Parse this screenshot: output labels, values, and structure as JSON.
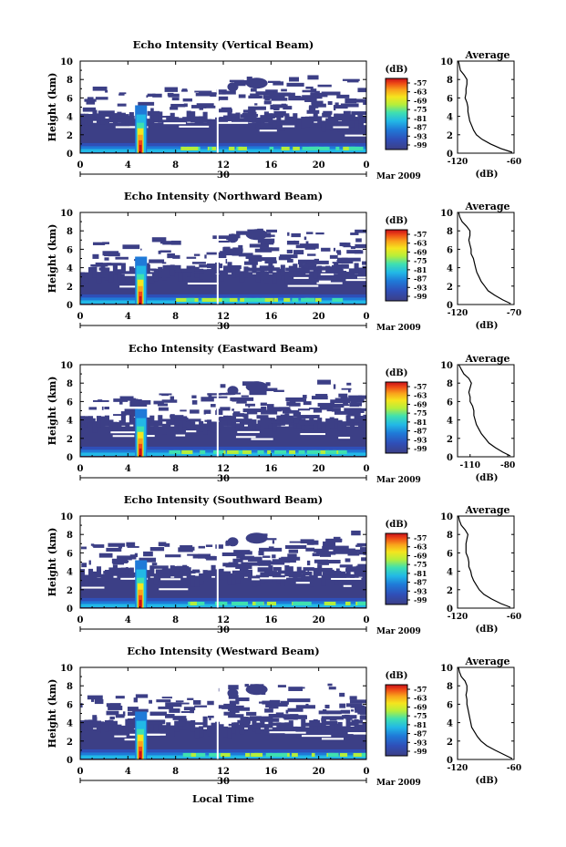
{
  "figure": {
    "xaxis_common_label": "Local Time",
    "colorbar_unit": "(dB)",
    "colorbar_ticks": [
      "-57",
      "-63",
      "-69",
      "-75",
      "-81",
      "-87",
      "-93",
      "-99"
    ],
    "colors": {
      "background_signal": "#3c3f86",
      "colormap": [
        "#3c3f86",
        "#2f4fb8",
        "#1f7ad8",
        "#22b8e6",
        "#3fe0b0",
        "#b4ee3c",
        "#f5e51e",
        "#f9a21b",
        "#ee4a16",
        "#c8101a"
      ]
    }
  },
  "chart_data": [
    {
      "type": "heatmap",
      "title": "Echo Intensity (Vertical Beam)",
      "ylabel": "Height (km)",
      "ylim": [
        0,
        10
      ],
      "yticks": [
        "0",
        "2",
        "4",
        "6",
        "8",
        "10"
      ],
      "xlim": [
        0,
        24
      ],
      "xticks": [
        "0",
        "4",
        "8",
        "12",
        "16",
        "20",
        "0"
      ],
      "date_day": "30",
      "date_label": "Mar 2009",
      "profile": {
        "title": "Average",
        "xlabel": "(dB)",
        "xlim": [
          -120,
          -60
        ],
        "xticks": [
          "-120",
          "-60"
        ],
        "points": [
          [
            -119,
            10
          ],
          [
            -118,
            9.5
          ],
          [
            -117,
            9.0
          ],
          [
            -113,
            8.5
          ],
          [
            -110,
            8.0
          ],
          [
            -110,
            7.5
          ],
          [
            -111,
            7.0
          ],
          [
            -111,
            6.5
          ],
          [
            -112,
            6.0
          ],
          [
            -110,
            5.5
          ],
          [
            -109,
            5.0
          ],
          [
            -109,
            4.5
          ],
          [
            -108,
            4.0
          ],
          [
            -107,
            3.5
          ],
          [
            -105,
            3.0
          ],
          [
            -103,
            2.5
          ],
          [
            -100,
            2.0
          ],
          [
            -94,
            1.5
          ],
          [
            -85,
            1.0
          ],
          [
            -74,
            0.5
          ],
          [
            -62,
            0.1
          ]
        ]
      }
    },
    {
      "type": "heatmap",
      "title": "Echo Intensity (Northward Beam)",
      "ylabel": "Height (km)",
      "ylim": [
        0,
        10
      ],
      "yticks": [
        "0",
        "2",
        "4",
        "6",
        "8",
        "10"
      ],
      "xlim": [
        0,
        24
      ],
      "xticks": [
        "0",
        "4",
        "8",
        "12",
        "16",
        "20",
        "0"
      ],
      "date_day": "30",
      "date_label": "Mar 2009",
      "profile": {
        "title": "Average",
        "xlabel": "(dB)",
        "xlim": [
          -120,
          -70
        ],
        "xticks": [
          "-120",
          "-70"
        ],
        "points": [
          [
            -119,
            10
          ],
          [
            -118,
            9.5
          ],
          [
            -116,
            9.0
          ],
          [
            -112,
            8.5
          ],
          [
            -109,
            8.0
          ],
          [
            -109,
            7.5
          ],
          [
            -110,
            7.0
          ],
          [
            -109,
            6.5
          ],
          [
            -108,
            6.0
          ],
          [
            -108,
            5.5
          ],
          [
            -106,
            5.0
          ],
          [
            -105,
            4.5
          ],
          [
            -104,
            4.0
          ],
          [
            -103,
            3.5
          ],
          [
            -101,
            3.0
          ],
          [
            -99,
            2.5
          ],
          [
            -96,
            2.0
          ],
          [
            -93,
            1.5
          ],
          [
            -87,
            1.0
          ],
          [
            -80,
            0.5
          ],
          [
            -73,
            0.1
          ]
        ]
      }
    },
    {
      "type": "heatmap",
      "title": "Echo Intensity (Eastward Beam)",
      "ylabel": "Height (km)",
      "ylim": [
        0,
        10
      ],
      "yticks": [
        "0",
        "2",
        "4",
        "6",
        "8",
        "10"
      ],
      "xlim": [
        0,
        24
      ],
      "xticks": [
        "0",
        "4",
        "8",
        "12",
        "16",
        "20",
        "0"
      ],
      "date_day": "30",
      "date_label": "Mar 2009",
      "profile": {
        "title": "Average",
        "xlabel": "(dB)",
        "xlim": [
          -120,
          -75
        ],
        "xticks": [
          "-110",
          "-80"
        ],
        "xtick_values": [
          -110,
          -80
        ],
        "points": [
          [
            -119,
            10
          ],
          [
            -117,
            9.5
          ],
          [
            -115,
            9.0
          ],
          [
            -111,
            8.5
          ],
          [
            -109,
            8.0
          ],
          [
            -110,
            7.5
          ],
          [
            -111,
            7.0
          ],
          [
            -110,
            6.5
          ],
          [
            -110,
            6.0
          ],
          [
            -108,
            5.5
          ],
          [
            -107,
            5.0
          ],
          [
            -107,
            4.5
          ],
          [
            -106,
            4.0
          ],
          [
            -105,
            3.5
          ],
          [
            -103,
            3.0
          ],
          [
            -101,
            2.5
          ],
          [
            -98,
            2.0
          ],
          [
            -95,
            1.5
          ],
          [
            -90,
            1.0
          ],
          [
            -84,
            0.5
          ],
          [
            -78,
            0.1
          ]
        ]
      }
    },
    {
      "type": "heatmap",
      "title": "Echo Intensity (Southward Beam)",
      "ylabel": "Height (km)",
      "ylim": [
        0,
        10
      ],
      "yticks": [
        "0",
        "2",
        "4",
        "6",
        "8",
        "10"
      ],
      "xlim": [
        0,
        24
      ],
      "xticks": [
        "0",
        "4",
        "8",
        "12",
        "16",
        "20",
        "0"
      ],
      "date_day": "30",
      "date_label": "Mar 2009",
      "profile": {
        "title": "Average",
        "xlabel": "(dB)",
        "xlim": [
          -120,
          -60
        ],
        "xticks": [
          "-120",
          "-60"
        ],
        "points": [
          [
            -119,
            10
          ],
          [
            -118,
            9.5
          ],
          [
            -116,
            9.0
          ],
          [
            -112,
            8.5
          ],
          [
            -109,
            8.0
          ],
          [
            -110,
            7.5
          ],
          [
            -111,
            7.0
          ],
          [
            -111,
            6.5
          ],
          [
            -111,
            6.0
          ],
          [
            -109,
            5.5
          ],
          [
            -108,
            5.0
          ],
          [
            -108,
            4.5
          ],
          [
            -106,
            4.0
          ],
          [
            -105,
            3.5
          ],
          [
            -103,
            3.0
          ],
          [
            -100,
            2.5
          ],
          [
            -97,
            2.0
          ],
          [
            -92,
            1.5
          ],
          [
            -84,
            1.0
          ],
          [
            -74,
            0.5
          ],
          [
            -64,
            0.1
          ]
        ]
      }
    },
    {
      "type": "heatmap",
      "title": "Echo Intensity (Westward Beam)",
      "ylabel": "Height (km)",
      "ylim": [
        0,
        10
      ],
      "yticks": [
        "0",
        "2",
        "4",
        "6",
        "8",
        "10"
      ],
      "xlim": [
        0,
        24
      ],
      "xticks": [
        "0",
        "4",
        "8",
        "12",
        "16",
        "20",
        "0"
      ],
      "date_day": "30",
      "date_label": "Mar 2009",
      "profile": {
        "title": "Average",
        "xlabel": "(dB)",
        "xlim": [
          -120,
          -60
        ],
        "xticks": [
          "-120",
          "-60"
        ],
        "points": [
          [
            -119,
            10
          ],
          [
            -118,
            9.5
          ],
          [
            -116,
            9.0
          ],
          [
            -112,
            8.5
          ],
          [
            -110,
            8.0
          ],
          [
            -110,
            7.5
          ],
          [
            -111,
            7.0
          ],
          [
            -110,
            6.5
          ],
          [
            -110,
            6.0
          ],
          [
            -109,
            5.5
          ],
          [
            -108,
            5.0
          ],
          [
            -107,
            4.5
          ],
          [
            -106,
            4.0
          ],
          [
            -105,
            3.5
          ],
          [
            -102,
            3.0
          ],
          [
            -99,
            2.5
          ],
          [
            -95,
            2.0
          ],
          [
            -89,
            1.5
          ],
          [
            -80,
            1.0
          ],
          [
            -70,
            0.5
          ],
          [
            -62,
            0.1
          ]
        ]
      }
    }
  ]
}
